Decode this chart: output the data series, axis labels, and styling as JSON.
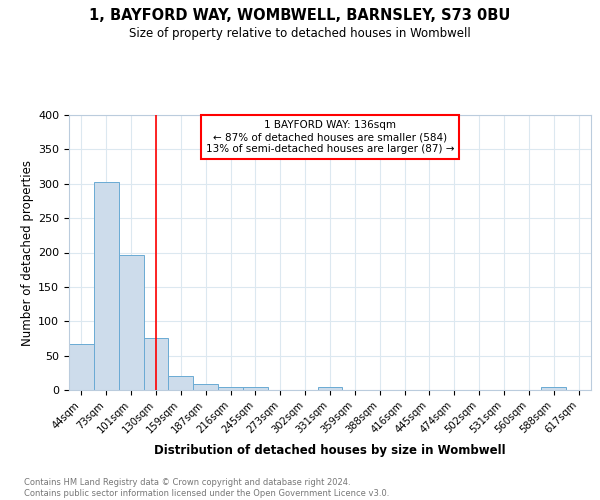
{
  "title": "1, BAYFORD WAY, WOMBWELL, BARNSLEY, S73 0BU",
  "subtitle": "Size of property relative to detached houses in Wombwell",
  "xlabel": "Distribution of detached houses by size in Wombwell",
  "ylabel": "Number of detached properties",
  "bin_labels": [
    "44sqm",
    "73sqm",
    "101sqm",
    "130sqm",
    "159sqm",
    "187sqm",
    "216sqm",
    "245sqm",
    "273sqm",
    "302sqm",
    "331sqm",
    "359sqm",
    "388sqm",
    "416sqm",
    "445sqm",
    "474sqm",
    "502sqm",
    "531sqm",
    "560sqm",
    "588sqm",
    "617sqm"
  ],
  "bar_values": [
    67,
    303,
    197,
    75,
    20,
    9,
    5,
    5,
    0,
    0,
    5,
    0,
    0,
    0,
    0,
    0,
    0,
    0,
    0,
    4,
    0
  ],
  "bar_color": "#cddceb",
  "bar_edge_color": "#6aaad4",
  "grid_color": "#dce8f0",
  "annotation_text": "1 BAYFORD WAY: 136sqm\n← 87% of detached houses are smaller (584)\n13% of semi-detached houses are larger (87) →",
  "annotation_box_color": "white",
  "annotation_box_edge": "red",
  "ylim": [
    0,
    400
  ],
  "yticks": [
    0,
    50,
    100,
    150,
    200,
    250,
    300,
    350,
    400
  ],
  "footer_text": "Contains HM Land Registry data © Crown copyright and database right 2024.\nContains public sector information licensed under the Open Government Licence v3.0.",
  "property_sqm": 136,
  "red_line_index": 3
}
